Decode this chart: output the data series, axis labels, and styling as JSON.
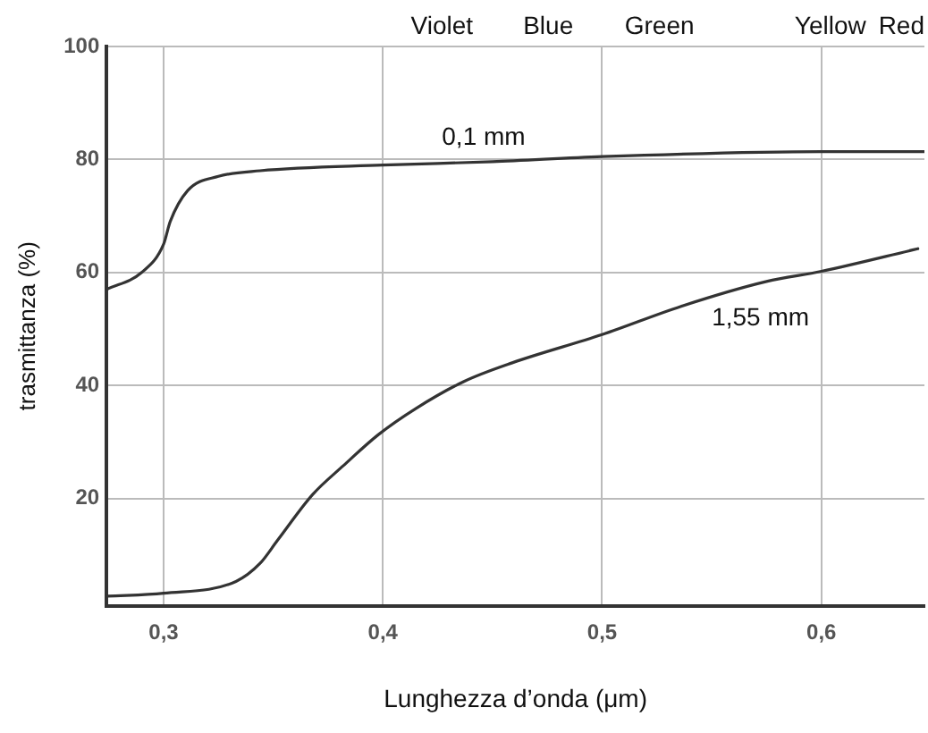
{
  "chart_data": {
    "type": "line",
    "xlabel": "Lunghezza d’onda (μm)",
    "ylabel": "trasmittanza (%)",
    "xlim": [
      0.274,
      0.647
    ],
    "ylim": [
      1,
      100
    ],
    "xticks": [
      {
        "value": 0.3,
        "label": "0,3"
      },
      {
        "value": 0.4,
        "label": "0,4"
      },
      {
        "value": 0.5,
        "label": "0,5"
      },
      {
        "value": 0.6,
        "label": "0,6"
      }
    ],
    "yticks": [
      20,
      40,
      60,
      80,
      100
    ],
    "grid": true,
    "legend": false,
    "marker": "none",
    "line_style": "solid",
    "series": [
      {
        "name": "0,1 mm",
        "color": "#333333",
        "x": [
          0.274,
          0.29,
          0.3,
          0.303,
          0.311,
          0.325,
          0.344,
          0.4,
          0.45,
          0.5,
          0.6,
          0.647
        ],
        "values": [
          57,
          60,
          65,
          69,
          74.5,
          77,
          78,
          79,
          79.6,
          80.5,
          81.4,
          81.4
        ]
      },
      {
        "name": "1,55 mm",
        "color": "#333333",
        "x": [
          0.2745,
          0.3,
          0.333,
          0.344,
          0.352,
          0.368,
          0.382,
          0.398,
          0.415,
          0.437,
          0.459,
          0.5,
          0.536,
          0.575,
          0.6,
          0.644
        ],
        "values": [
          2.7,
          3.2,
          5.3,
          8.5,
          12.6,
          20.7,
          25.8,
          31.3,
          35.9,
          40.7,
          44,
          49,
          54,
          58.4,
          60.2,
          64.2
        ]
      }
    ],
    "annotations": [
      "Violet",
      "Blue",
      "Green",
      "Yellow",
      "Red"
    ]
  }
}
